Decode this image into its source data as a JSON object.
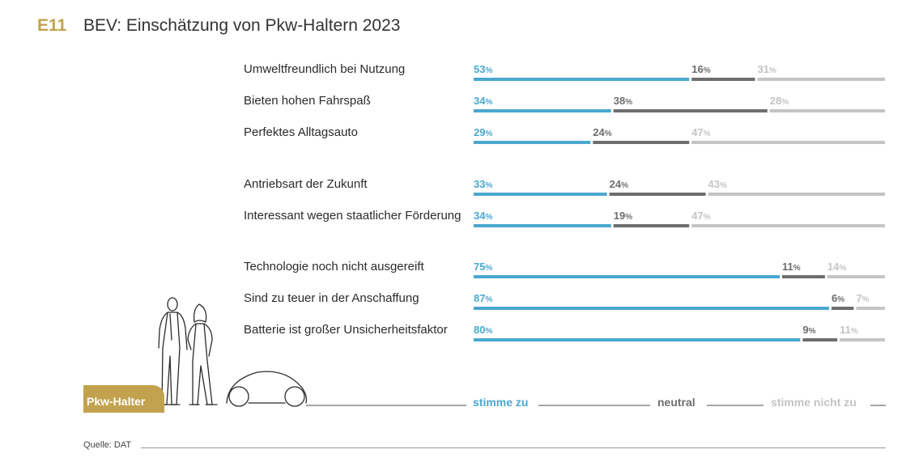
{
  "header": {
    "code": "E11",
    "title": "BEV: Einschätzung von Pkw-Haltern 2023"
  },
  "colors": {
    "agree": "#4aa8cf",
    "neutral": "#6e6e6e",
    "disagree": "#c4c4c4",
    "accent": "#c2a24e"
  },
  "badge": {
    "label": "Pkw-Halter"
  },
  "illustration": {
    "icon": "people-and-car-line-drawing-icon"
  },
  "legend": {
    "agree": "stimme zu",
    "neutral": "neutral",
    "disagree": "stimme nicht zu"
  },
  "source": "Quelle: DAT",
  "chart_data": {
    "type": "bar",
    "orientation": "horizontal-stacked",
    "percent_suffix": "%",
    "categories": [
      "Umweltfreundlich bei Nutzung",
      "Bieten hohen Fahrspaß",
      "Perfektes Alltagsauto",
      "Antriebsart der Zukunft",
      "Interessant wegen staatlicher Förderung",
      "Technologie noch nicht ausgereift",
      "Sind zu teuer in der Anschaffung",
      "Batterie ist großer Unsicherheitsfaktor"
    ],
    "groups": [
      3,
      2,
      3
    ],
    "series": [
      {
        "name": "stimme zu",
        "values": [
          53,
          34,
          29,
          33,
          34,
          75,
          87,
          80
        ]
      },
      {
        "name": "neutral",
        "values": [
          16,
          38,
          24,
          24,
          19,
          11,
          6,
          9
        ]
      },
      {
        "name": "stimme nicht zu",
        "values": [
          31,
          28,
          47,
          43,
          47,
          14,
          7,
          11
        ]
      }
    ],
    "xlim": [
      0,
      100
    ]
  }
}
